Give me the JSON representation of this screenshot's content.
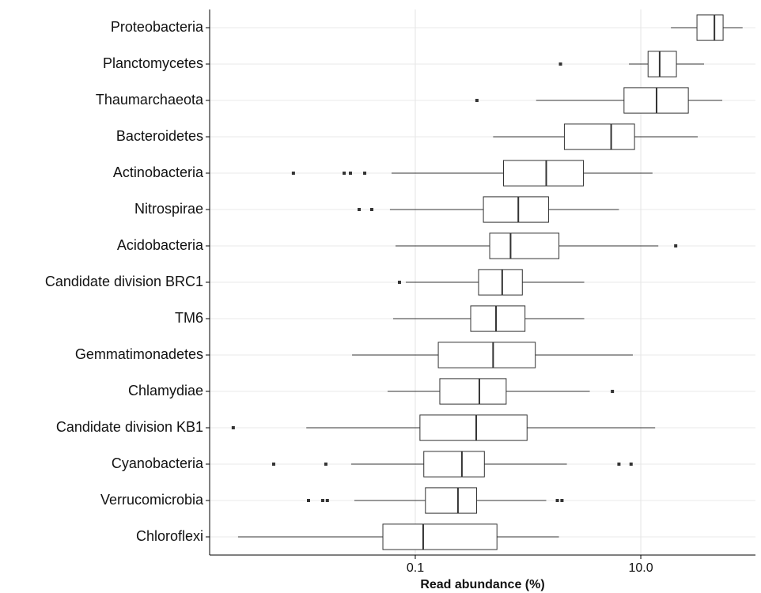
{
  "chart_data": {
    "type": "boxplot",
    "orientation": "horizontal",
    "xlabel": "Read abundance (%)",
    "xscale": "log",
    "xlim": [
      0.0015,
      104
    ],
    "xticks": [
      {
        "value": 0.1,
        "label": "0.1"
      },
      {
        "value": 10,
        "label": "10.0"
      }
    ],
    "grid": true,
    "color": "#ffffff",
    "edge_color": "#333333",
    "flier_color": "#333333",
    "categories": [
      "Proteobacteria",
      "Planctomycetes",
      "Thaumarchaeota",
      "Bacteroidetes",
      "Actinobacteria",
      "Nitrospirae",
      "Acidobacteria",
      "Candidate division BRC1",
      "TM6",
      "Gemmatimonadetes",
      "Chlamydiae",
      "Candidate division KB1",
      "Cyanobacteria",
      "Verrucomicrobia",
      "Chloroflexi"
    ],
    "boxes": [
      {
        "whislo": 18.5,
        "q1": 31.5,
        "med": 45,
        "q3": 53.7,
        "whishi": 80,
        "fliers": []
      },
      {
        "whislo": 7.85,
        "q1": 11.6,
        "med": 14.7,
        "q3": 20.7,
        "whishi": 36.4,
        "fliers": [
          1.94
        ]
      },
      {
        "whislo": 1.18,
        "q1": 7.1,
        "med": 13.8,
        "q3": 26.4,
        "whishi": 52.8,
        "fliers": [
          0.352
        ]
      },
      {
        "whislo": 0.49,
        "q1": 2.1,
        "med": 5.46,
        "q3": 8.8,
        "whishi": 32,
        "fliers": []
      },
      {
        "whislo": 0.0616,
        "q1": 0.606,
        "med": 1.45,
        "q3": 3.1,
        "whishi": 12.7,
        "fliers": [
          0.0083,
          0.0234,
          0.0266,
          0.0356
        ]
      },
      {
        "whislo": 0.0596,
        "q1": 0.402,
        "med": 0.82,
        "q3": 1.52,
        "whishi": 6.4,
        "fliers": [
          0.0318,
          0.0411
        ]
      },
      {
        "whislo": 0.0668,
        "q1": 0.457,
        "med": 0.7,
        "q3": 1.88,
        "whishi": 14.3,
        "fliers": [
          20.4
        ]
      },
      {
        "whislo": 0.0824,
        "q1": 0.364,
        "med": 0.59,
        "q3": 0.89,
        "whishi": 3.15,
        "fliers": [
          0.0724
        ]
      },
      {
        "whislo": 0.0636,
        "q1": 0.31,
        "med": 0.52,
        "q3": 0.94,
        "whishi": 3.15,
        "fliers": []
      },
      {
        "whislo": 0.0275,
        "q1": 0.16,
        "med": 0.49,
        "q3": 1.16,
        "whishi": 8.5,
        "fliers": []
      },
      {
        "whislo": 0.0568,
        "q1": 0.165,
        "med": 0.37,
        "q3": 0.64,
        "whishi": 3.53,
        "fliers": [
          5.6
        ]
      },
      {
        "whislo": 0.0108,
        "q1": 0.11,
        "med": 0.347,
        "q3": 0.98,
        "whishi": 13.4,
        "fliers": [
          0.00243
        ]
      },
      {
        "whislo": 0.027,
        "q1": 0.119,
        "med": 0.259,
        "q3": 0.41,
        "whishi": 2.21,
        "fliers": [
          0.00555,
          0.0161,
          6.4,
          8.2
        ]
      },
      {
        "whislo": 0.0288,
        "q1": 0.123,
        "med": 0.239,
        "q3": 0.35,
        "whishi": 1.45,
        "fliers": [
          0.0113,
          0.0151,
          0.0166,
          1.82,
          2.0
        ]
      },
      {
        "whislo": 0.00268,
        "q1": 0.0516,
        "med": 0.1175,
        "q3": 0.53,
        "whishi": 1.88,
        "fliers": []
      }
    ]
  }
}
